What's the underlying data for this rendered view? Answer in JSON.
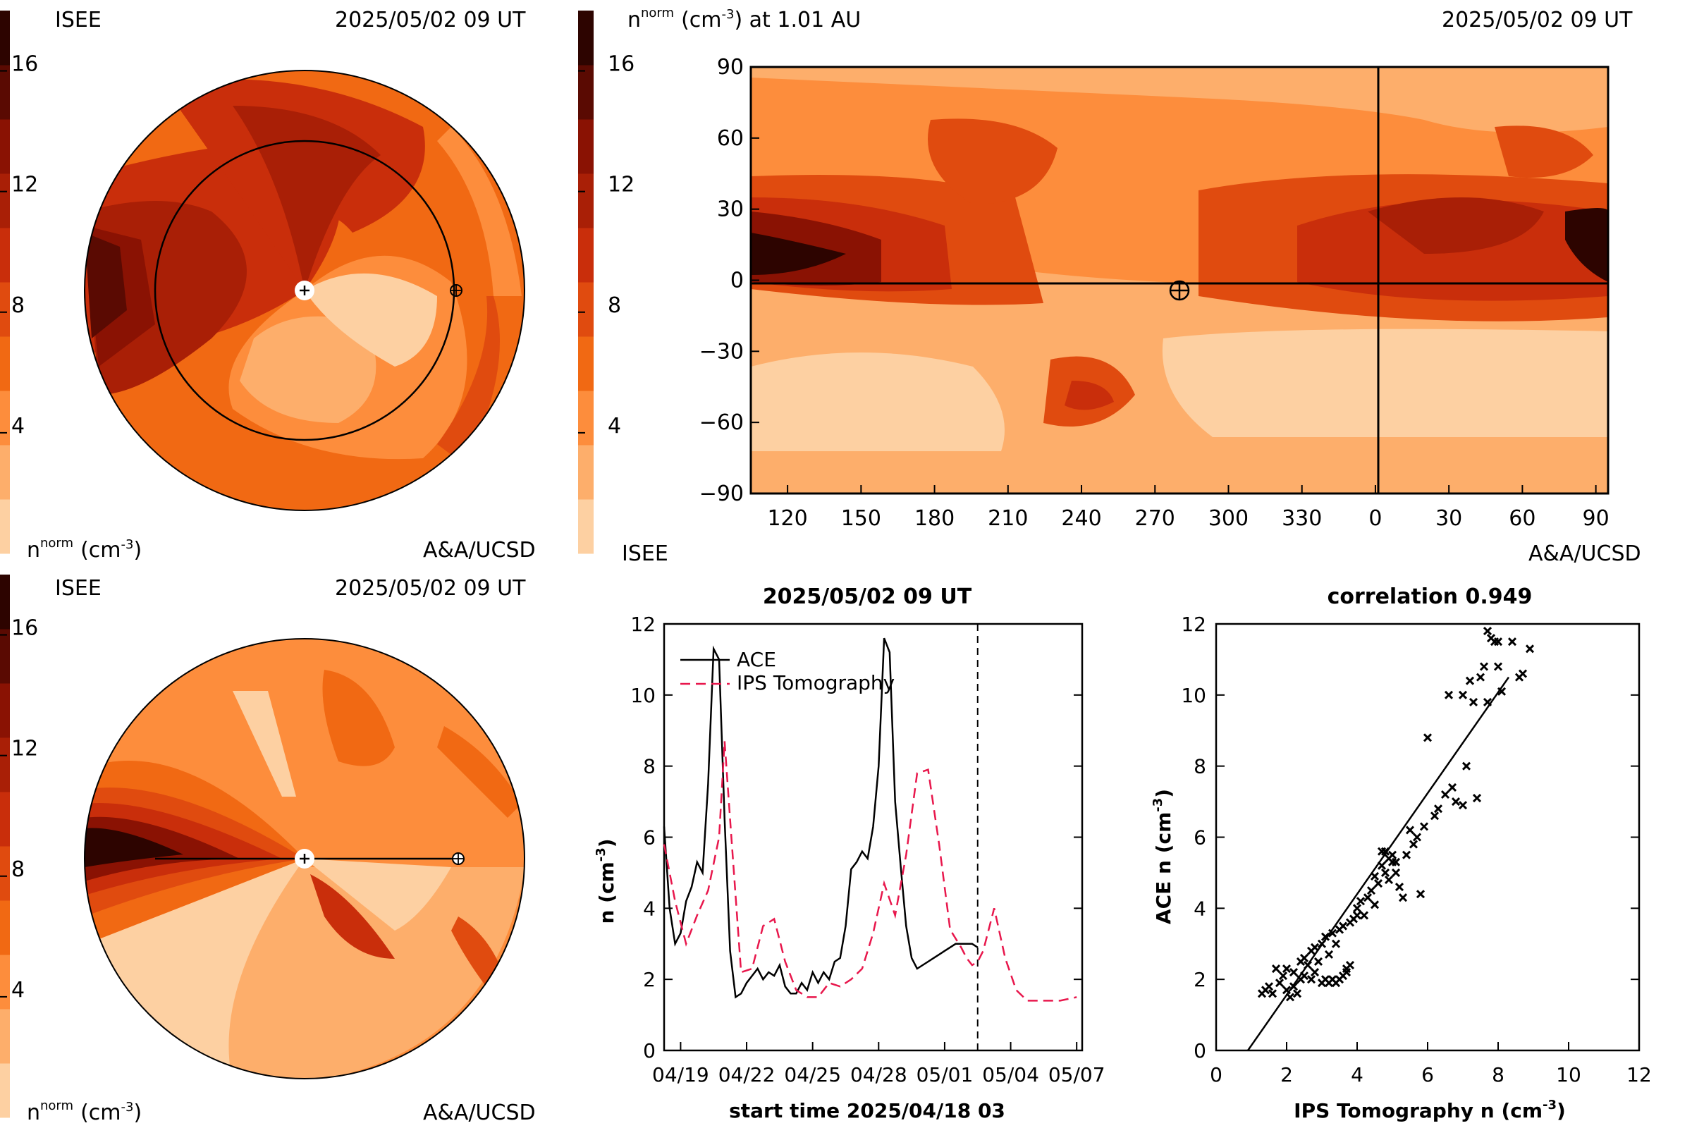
{
  "palette": [
    "#fdd0a2",
    "#fdae6b",
    "#fd8d3c",
    "#f16913",
    "#e04b0f",
    "#c92e0b",
    "#a91f06",
    "#8a1203",
    "#5a0a02",
    "#2d0400"
  ],
  "panel_top_left": {
    "label_tl": "ISEE",
    "timestamp": "2025/05/02 09 UT",
    "units_base": "n",
    "units_sup": "norm",
    "units_tail": "(cm",
    "units_exp": "-3",
    "units_close": ")",
    "label_br": "A&A/UCSD",
    "colorbar_ticks": [
      "16",
      "12",
      "8",
      "4"
    ],
    "symbols": [
      "sun",
      "earth"
    ]
  },
  "panel_bottom_left": {
    "label_tl": "ISEE",
    "timestamp": "2025/05/02 09 UT",
    "units_base": "n",
    "units_sup": "norm",
    "units_tail": "(cm",
    "units_exp": "-3",
    "units_close": ")",
    "label_br": "A&A/UCSD",
    "colorbar_ticks": [
      "16",
      "12",
      "8",
      "4"
    ],
    "symbols": [
      "sun",
      "earth"
    ]
  },
  "panel_synoptic": {
    "title_base": "n",
    "title_sup": "norm",
    "title_mid": "(cm",
    "title_exp": "-3",
    "title_tail": ") at 1.01 AU",
    "timestamp": "2025/05/02 09 UT",
    "colorbar_label": "ISEE",
    "credit": "A&A/UCSD",
    "colorbar_ticks": [
      "16",
      "12",
      "8",
      "4"
    ],
    "x_ticks": [
      "120",
      "150",
      "180",
      "210",
      "240",
      "270",
      "300",
      "330",
      "0",
      "30",
      "60",
      "90"
    ],
    "y_ticks": [
      "90",
      "60",
      "30",
      "0",
      "−30",
      "−60",
      "−90"
    ],
    "earth_symbol": "earth-icon"
  },
  "chart_data": [
    {
      "type": "line",
      "title": "2025/05/02 09 UT",
      "xlabel": "start time 2025/04/18 03",
      "ylabel": "n (cm",
      "ylabel_exp": "-3",
      "ylabel_close": ")",
      "x_tick_labels": [
        "04/19",
        "04/22",
        "04/25",
        "04/28",
        "05/01",
        "05/04",
        "05/07"
      ],
      "y_ticks": [
        "0",
        "2",
        "4",
        "6",
        "8",
        "10",
        "12"
      ],
      "ylim": [
        0,
        12
      ],
      "xlim_days": [
        0,
        19
      ],
      "marker_day": 14.25,
      "series": [
        {
          "name": "ACE",
          "color": "#000000",
          "dash": "solid",
          "x": [
            0,
            0.25,
            0.5,
            0.75,
            1.0,
            1.25,
            1.5,
            1.75,
            2.0,
            2.25,
            2.5,
            2.75,
            3.0,
            3.25,
            3.5,
            3.75,
            4.0,
            4.25,
            4.5,
            4.75,
            5.0,
            5.25,
            5.5,
            5.75,
            6.0,
            6.25,
            6.5,
            6.75,
            7.0,
            7.25,
            7.5,
            7.75,
            8.0,
            8.25,
            8.5,
            8.75,
            9.0,
            9.25,
            9.5,
            9.75,
            10.0,
            10.25,
            10.5,
            10.75,
            11.0,
            11.25,
            11.5,
            11.75,
            12.0,
            12.25,
            12.5,
            12.75,
            13.0,
            13.25,
            13.5,
            13.75,
            14.0,
            14.25
          ],
          "y": [
            6.3,
            4.0,
            3.0,
            3.3,
            4.2,
            4.6,
            5.3,
            5.0,
            7.5,
            11.3,
            11.0,
            6.5,
            2.8,
            1.5,
            1.6,
            1.9,
            2.1,
            2.3,
            2.0,
            2.2,
            2.1,
            2.4,
            1.8,
            1.6,
            1.6,
            1.9,
            1.7,
            2.2,
            1.9,
            2.2,
            2.0,
            2.5,
            2.6,
            3.5,
            5.1,
            5.3,
            5.6,
            5.4,
            6.3,
            8.0,
            11.6,
            11.2,
            7.0,
            5.2,
            3.5,
            2.6,
            2.3,
            2.4,
            2.5,
            2.6,
            2.7,
            2.8,
            2.9,
            3.0,
            3.0,
            3.0,
            3.0,
            2.9
          ],
          "note": "ACE data ends at marker"
        },
        {
          "name": "IPS Tomography",
          "color": "#e8174c",
          "dash": "dashed",
          "x": [
            0,
            0.5,
            1.0,
            1.5,
            2.0,
            2.5,
            2.75,
            3.0,
            3.5,
            4.0,
            4.5,
            5.0,
            5.5,
            6.0,
            6.5,
            7.0,
            7.5,
            8.0,
            8.5,
            9.0,
            9.5,
            10.0,
            10.5,
            11.0,
            11.5,
            12.0,
            12.5,
            13.0,
            13.5,
            13.75,
            14.0,
            14.25,
            14.5,
            15.0,
            15.5,
            16.0,
            16.5,
            17.0,
            18.0,
            18.75
          ],
          "y": [
            5.8,
            4.2,
            3.0,
            3.8,
            4.5,
            6.0,
            8.7,
            6.5,
            2.2,
            2.3,
            3.5,
            3.7,
            2.5,
            1.7,
            1.5,
            1.5,
            1.9,
            1.8,
            2.0,
            2.3,
            3.3,
            4.7,
            3.8,
            5.5,
            7.8,
            7.9,
            5.8,
            3.4,
            2.9,
            2.6,
            2.4,
            2.5,
            2.8,
            4.0,
            2.6,
            1.7,
            1.4,
            1.4,
            1.4,
            1.5
          ]
        }
      ]
    },
    {
      "type": "scatter",
      "title": "correlation 0.949",
      "xlabel": "IPS Tomography n (cm",
      "xlabel_exp": "-3",
      "xlabel_close": ")",
      "ylabel": "ACE n (cm",
      "ylabel_exp": "-3",
      "ylabel_close": ")",
      "x_ticks": [
        "0",
        "2",
        "4",
        "6",
        "8",
        "10",
        "12"
      ],
      "y_ticks": [
        "0",
        "2",
        "4",
        "6",
        "8",
        "10",
        "12"
      ],
      "xlim": [
        0,
        12
      ],
      "ylim": [
        0,
        12
      ],
      "fit_line": {
        "x": [
          0.9,
          8.3
        ],
        "y": [
          -0.1,
          10.5
        ]
      },
      "points": [
        [
          1.3,
          1.6
        ],
        [
          1.4,
          1.7
        ],
        [
          1.5,
          1.8
        ],
        [
          1.6,
          1.6
        ],
        [
          1.7,
          2.3
        ],
        [
          1.8,
          1.9
        ],
        [
          1.9,
          2.1
        ],
        [
          2.0,
          2.3
        ],
        [
          2.0,
          1.7
        ],
        [
          2.1,
          1.5
        ],
        [
          2.2,
          1.8
        ],
        [
          2.2,
          2.2
        ],
        [
          2.3,
          1.6
        ],
        [
          2.4,
          2.0
        ],
        [
          2.4,
          2.5
        ],
        [
          2.5,
          2.1
        ],
        [
          2.5,
          2.6
        ],
        [
          2.6,
          2.4
        ],
        [
          2.7,
          2.0
        ],
        [
          2.7,
          2.8
        ],
        [
          2.8,
          2.2
        ],
        [
          2.8,
          2.9
        ],
        [
          2.9,
          2.5
        ],
        [
          3.0,
          3.0
        ],
        [
          3.0,
          1.9
        ],
        [
          3.1,
          2.0
        ],
        [
          3.1,
          3.2
        ],
        [
          3.2,
          1.9
        ],
        [
          3.2,
          2.7
        ],
        [
          3.3,
          2.0
        ],
        [
          3.3,
          3.3
        ],
        [
          3.4,
          1.9
        ],
        [
          3.4,
          3.0
        ],
        [
          3.5,
          2.0
        ],
        [
          3.5,
          3.4
        ],
        [
          3.6,
          2.1
        ],
        [
          3.6,
          3.5
        ],
        [
          3.7,
          2.2
        ],
        [
          3.7,
          2.3
        ],
        [
          3.8,
          2.4
        ],
        [
          3.8,
          3.6
        ],
        [
          3.9,
          3.7
        ],
        [
          4.0,
          3.8
        ],
        [
          4.0,
          4.0
        ],
        [
          4.1,
          4.2
        ],
        [
          4.2,
          3.8
        ],
        [
          4.3,
          4.3
        ],
        [
          4.4,
          4.5
        ],
        [
          4.5,
          4.1
        ],
        [
          4.5,
          4.9
        ],
        [
          4.6,
          4.7
        ],
        [
          4.7,
          5.2
        ],
        [
          4.7,
          5.6
        ],
        [
          4.8,
          5.0
        ],
        [
          4.8,
          5.6
        ],
        [
          4.9,
          4.8
        ],
        [
          4.9,
          5.4
        ],
        [
          5.0,
          5.3
        ],
        [
          5.0,
          5.5
        ],
        [
          5.1,
          5.0
        ],
        [
          5.1,
          5.3
        ],
        [
          5.2,
          4.6
        ],
        [
          5.3,
          4.3
        ],
        [
          5.4,
          5.5
        ],
        [
          5.5,
          6.2
        ],
        [
          5.6,
          5.8
        ],
        [
          5.7,
          6.0
        ],
        [
          5.8,
          4.4
        ],
        [
          5.9,
          6.3
        ],
        [
          6.0,
          8.8
        ],
        [
          6.2,
          6.6
        ],
        [
          6.3,
          6.8
        ],
        [
          6.5,
          7.2
        ],
        [
          6.7,
          7.4
        ],
        [
          6.8,
          7.0
        ],
        [
          7.0,
          6.9
        ],
        [
          7.1,
          8.0
        ],
        [
          7.2,
          10.4
        ],
        [
          7.3,
          9.8
        ],
        [
          7.4,
          7.1
        ],
        [
          7.6,
          10.8
        ],
        [
          7.7,
          11.8
        ],
        [
          7.8,
          11.6
        ],
        [
          7.9,
          11.5
        ],
        [
          8.0,
          11.5
        ],
        [
          8.0,
          10.8
        ],
        [
          8.1,
          10.1
        ],
        [
          8.4,
          11.5
        ],
        [
          8.6,
          10.5
        ],
        [
          8.7,
          10.6
        ],
        [
          8.9,
          11.3
        ],
        [
          7.7,
          9.8
        ],
        [
          7.5,
          10.5
        ],
        [
          6.6,
          10.0
        ],
        [
          7.0,
          10.0
        ]
      ]
    }
  ]
}
